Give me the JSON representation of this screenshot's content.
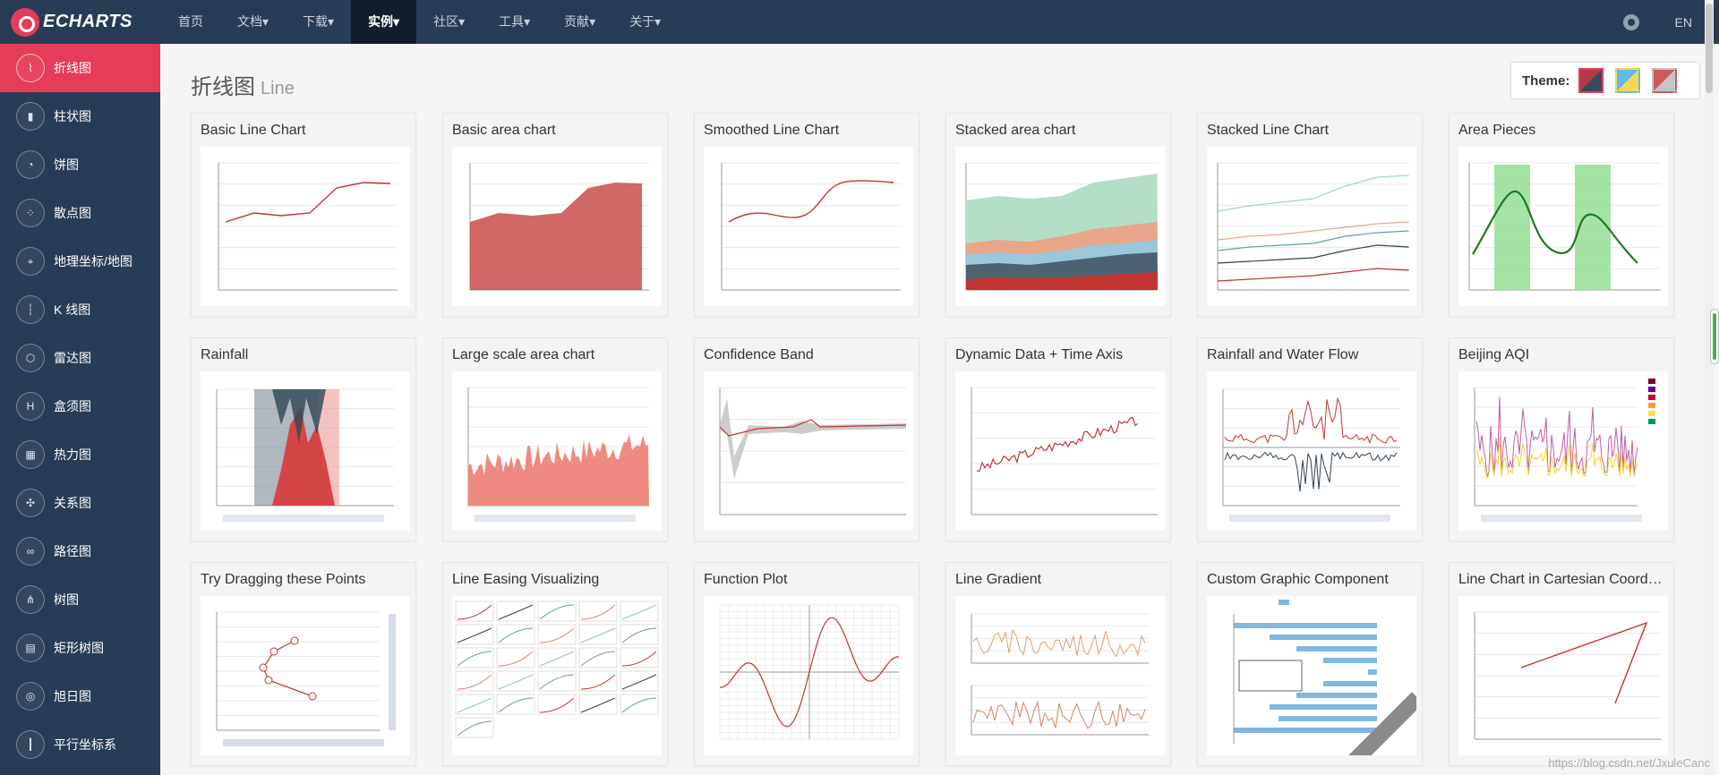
{
  "header": {
    "logo_text": "ECHARTS",
    "nav": [
      {
        "label": "首页",
        "active": false
      },
      {
        "label": "文档▾",
        "active": false
      },
      {
        "label": "下载▾",
        "active": false
      },
      {
        "label": "实例▾",
        "active": true
      },
      {
        "label": "社区▾",
        "active": false
      },
      {
        "label": "工具▾",
        "active": false
      },
      {
        "label": "贡献▾",
        "active": false
      },
      {
        "label": "关于▾",
        "active": false
      }
    ],
    "lang": "EN"
  },
  "sidebar": {
    "items": [
      {
        "label": "折线图",
        "icon": "line-chart-icon",
        "glyph": "⌇",
        "active": true
      },
      {
        "label": "柱状图",
        "icon": "bar-chart-icon",
        "glyph": "▮",
        "active": false
      },
      {
        "label": "饼图",
        "icon": "pie-chart-icon",
        "glyph": "◔",
        "active": false
      },
      {
        "label": "散点图",
        "icon": "scatter-icon",
        "glyph": "⁘",
        "active": false
      },
      {
        "label": "地理坐标/地图",
        "icon": "map-icon",
        "glyph": "⌖",
        "active": false
      },
      {
        "label": "K 线图",
        "icon": "candlestick-icon",
        "glyph": "┆",
        "active": false
      },
      {
        "label": "雷达图",
        "icon": "radar-icon",
        "glyph": "⬡",
        "active": false
      },
      {
        "label": "盒须图",
        "icon": "boxplot-icon",
        "glyph": "H",
        "active": false
      },
      {
        "label": "热力图",
        "icon": "heatmap-icon",
        "glyph": "▦",
        "active": false
      },
      {
        "label": "关系图",
        "icon": "graph-icon",
        "glyph": "✣",
        "active": false
      },
      {
        "label": "路径图",
        "icon": "lines-icon",
        "glyph": "∞",
        "active": false
      },
      {
        "label": "树图",
        "icon": "tree-icon",
        "glyph": "⋔",
        "active": false
      },
      {
        "label": "矩形树图",
        "icon": "treemap-icon",
        "glyph": "▤",
        "active": false
      },
      {
        "label": "旭日图",
        "icon": "sunburst-icon",
        "glyph": "◎",
        "active": false
      },
      {
        "label": "平行坐标系",
        "icon": "parallel-icon",
        "glyph": "┃",
        "active": false
      }
    ]
  },
  "page": {
    "title": "折线图",
    "subtitle": "Line",
    "theme_label": "Theme:"
  },
  "themes": [
    {
      "name": "dark-red",
      "colors": [
        "#b23a48",
        "#3a4a5f"
      ],
      "selected": true
    },
    {
      "name": "light-blue-yellow",
      "colors": [
        "#63b9e8",
        "#f5d75a"
      ],
      "selected": false
    },
    {
      "name": "default-gradient",
      "colors": [
        "#d05a5a",
        "#c6c6c6"
      ],
      "selected": false
    }
  ],
  "cards": [
    {
      "title": "Basic Line Chart",
      "kind": "basic-line"
    },
    {
      "title": "Basic area chart",
      "kind": "basic-area"
    },
    {
      "title": "Smoothed Line Chart",
      "kind": "smooth-line"
    },
    {
      "title": "Stacked area chart",
      "kind": "stacked-area"
    },
    {
      "title": "Stacked Line Chart",
      "kind": "stacked-line"
    },
    {
      "title": "Area Pieces",
      "kind": "area-pieces"
    },
    {
      "title": "Rainfall",
      "kind": "rainfall"
    },
    {
      "title": "Large scale area chart",
      "kind": "large-area"
    },
    {
      "title": "Confidence Band",
      "kind": "confidence"
    },
    {
      "title": "Dynamic Data + Time Axis",
      "kind": "dynamic"
    },
    {
      "title": "Rainfall and Water Flow",
      "kind": "rain-flow"
    },
    {
      "title": "Beijing AQI",
      "kind": "aqi"
    },
    {
      "title": "Try Dragging these Points",
      "kind": "drag"
    },
    {
      "title": "Line Easing Visualizing",
      "kind": "easing"
    },
    {
      "title": "Function Plot",
      "kind": "function"
    },
    {
      "title": "Line Gradient",
      "kind": "gradient"
    },
    {
      "title": "Custom Graphic Component",
      "kind": "graphic"
    },
    {
      "title": "Line Chart in Cartesian Coord…",
      "kind": "cartesian"
    }
  ],
  "watermark": "https://blog.csdn.net/JxuleCanc"
}
